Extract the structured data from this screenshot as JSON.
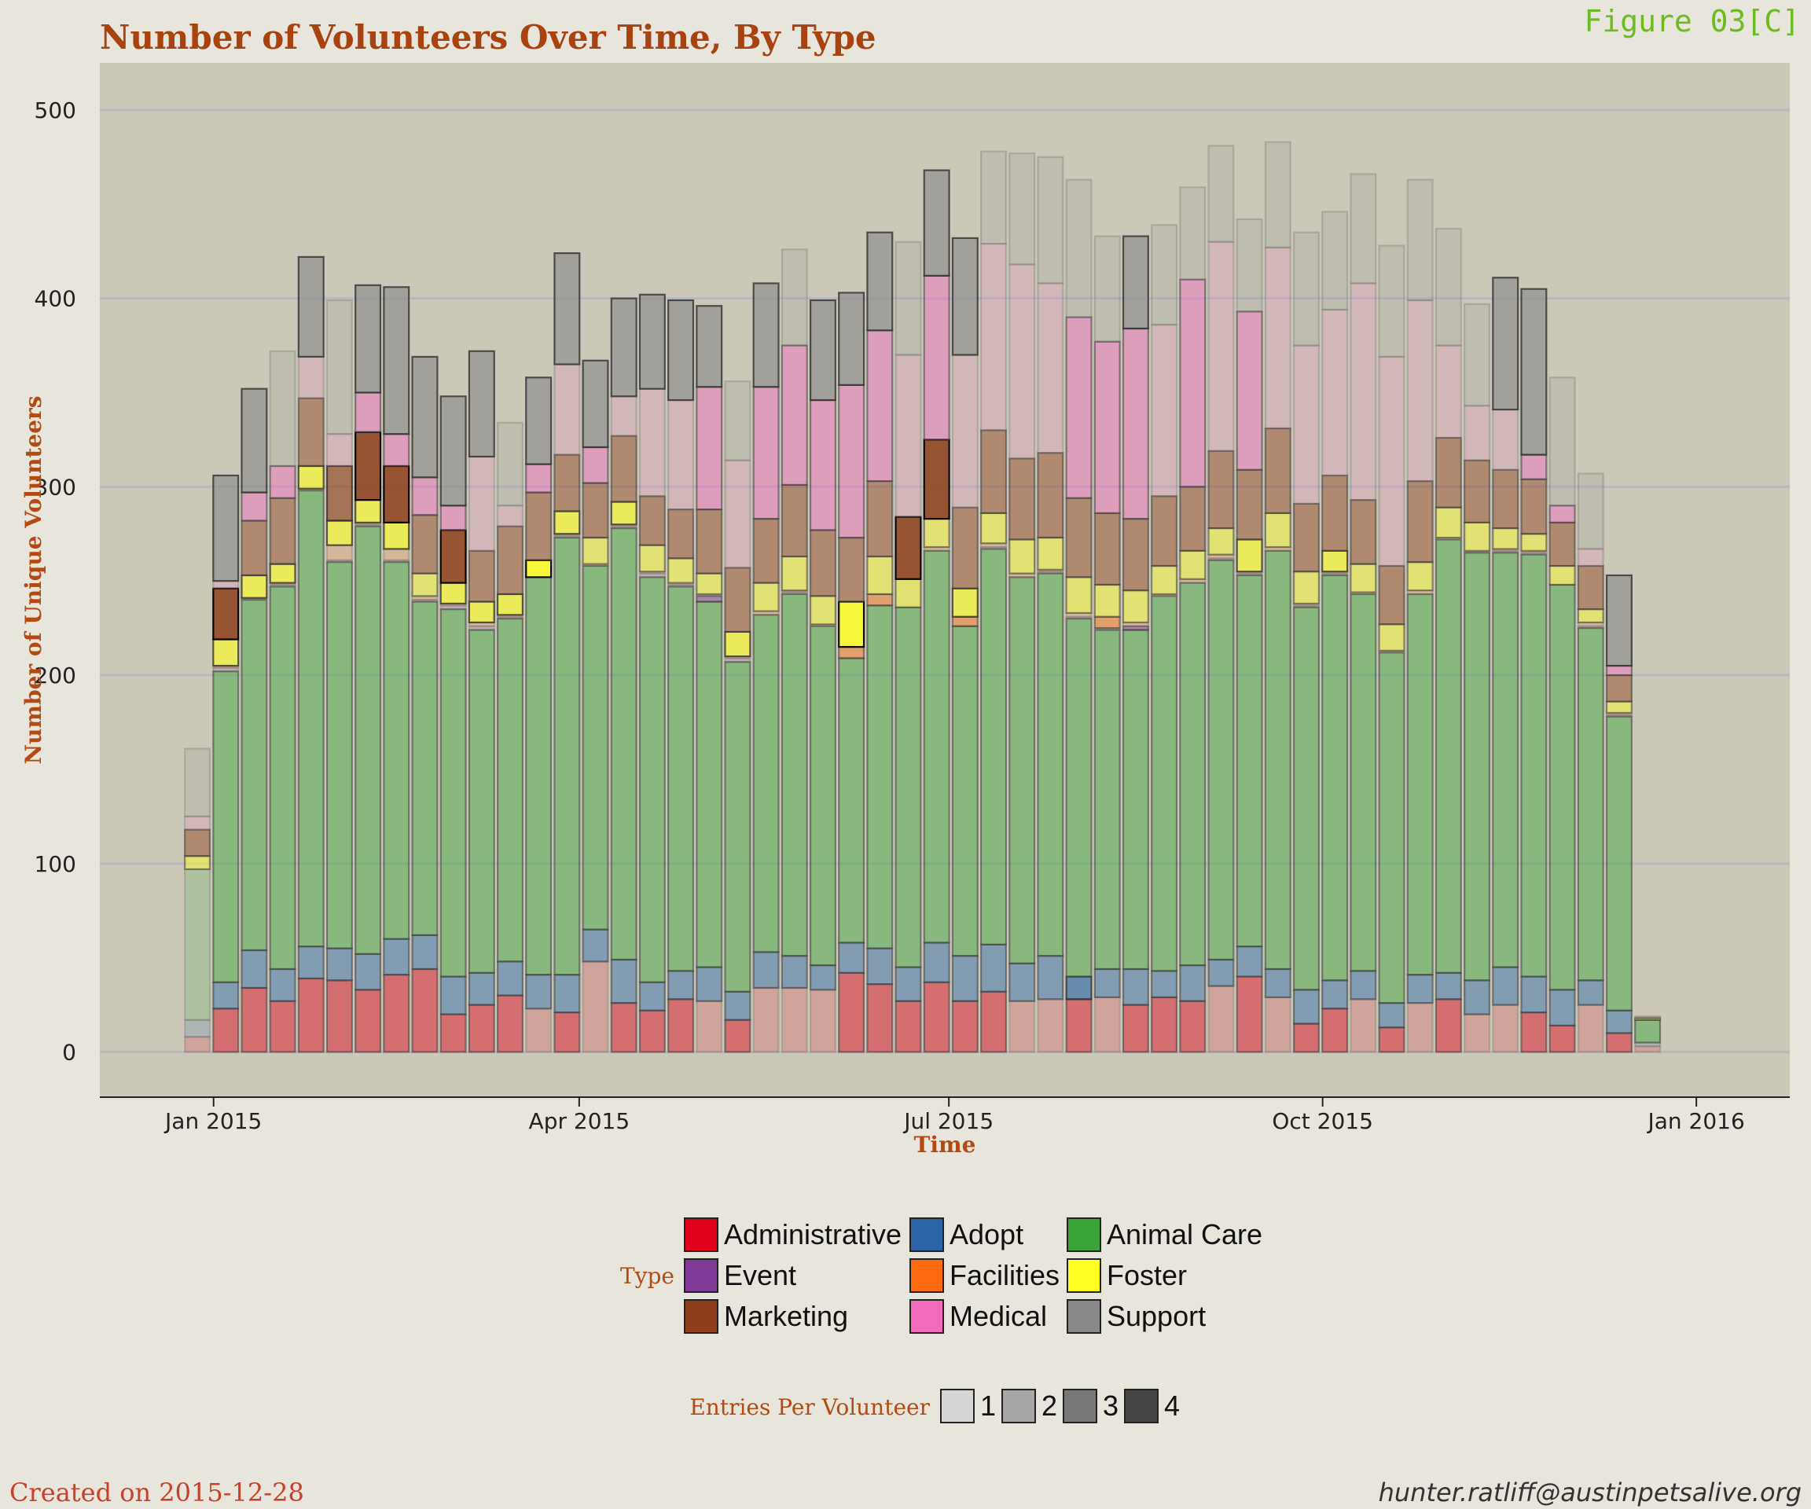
{
  "title": "Number of Volunteers Over Time, By Type",
  "figure_label": "Figure 03[C]",
  "footer": {
    "created": "Created on 2015-12-28",
    "email": "hunter.ratliff@austinpetsalive.org"
  },
  "chart_data": {
    "type": "bar",
    "stacked": true,
    "title": "Number of Volunteers Over Time, By Type",
    "xlabel": "Time",
    "ylabel": "Number of Unique Volunteers",
    "x_ticks": [
      "Jan 2015",
      "Apr 2015",
      "Jul 2015",
      "Oct 2015",
      "Jan 2016"
    ],
    "x_tick_dates": [
      "2015-01-01",
      "2015-04-01",
      "2015-07-01",
      "2015-10-01",
      "2016-01-01"
    ],
    "x_range": [
      "2014-12-04",
      "2016-01-24"
    ],
    "y_ticks": [
      0,
      100,
      200,
      300,
      400,
      500
    ],
    "ylim": [
      -24,
      525
    ],
    "grid": true,
    "legend_type": {
      "title": "Type",
      "placement": "bottom",
      "entries": [
        {
          "name": "Administrative",
          "color": "#e0001b"
        },
        {
          "name": "Adopt",
          "color": "#2b65a8"
        },
        {
          "name": "Animal Care",
          "color": "#3aa33a"
        },
        {
          "name": "Event",
          "color": "#7f3a98"
        },
        {
          "name": "Facilities",
          "color": "#ff6a10"
        },
        {
          "name": "Foster",
          "color": "#ffff22"
        },
        {
          "name": "Marketing",
          "color": "#8e3f1a"
        },
        {
          "name": "Medical",
          "color": "#f26bbd"
        },
        {
          "name": "Support",
          "color": "#888888"
        }
      ]
    },
    "legend_entries": {
      "title": "Entries Per Volunteer",
      "placement": "bottom",
      "entries": [
        {
          "name": "1",
          "color": "#d6d6d6"
        },
        {
          "name": "2",
          "color": "#a6a6a6"
        },
        {
          "name": "3",
          "color": "#777777"
        },
        {
          "name": "4",
          "color": "#444444"
        }
      ]
    },
    "stack_order": [
      "Administrative",
      "Adopt",
      "Animal Care",
      "Event",
      "Facilities",
      "Foster",
      "Marketing",
      "Medical",
      "Support"
    ],
    "week_start": [
      "2014-12-28",
      "2015-01-04",
      "2015-01-11",
      "2015-01-18",
      "2015-01-25",
      "2015-02-01",
      "2015-02-08",
      "2015-02-15",
      "2015-02-22",
      "2015-03-01",
      "2015-03-08",
      "2015-03-15",
      "2015-03-22",
      "2015-03-29",
      "2015-04-05",
      "2015-04-12",
      "2015-04-19",
      "2015-04-26",
      "2015-05-03",
      "2015-05-10",
      "2015-05-17",
      "2015-05-24",
      "2015-05-31",
      "2015-06-07",
      "2015-06-14",
      "2015-06-21",
      "2015-06-28",
      "2015-07-05",
      "2015-07-12",
      "2015-07-19",
      "2015-07-26",
      "2015-08-02",
      "2015-08-09",
      "2015-08-16",
      "2015-08-23",
      "2015-08-30",
      "2015-09-06",
      "2015-09-13",
      "2015-09-20",
      "2015-09-27",
      "2015-10-04",
      "2015-10-11",
      "2015-10-18",
      "2015-10-25",
      "2015-11-01",
      "2015-11-08",
      "2015-11-15",
      "2015-11-22",
      "2015-11-29",
      "2015-12-06",
      "2015-12-13",
      "2015-12-20",
      "2015-12-27"
    ],
    "series": [
      {
        "name": "Administrative",
        "values": [
          8,
          23,
          34,
          27,
          39,
          38,
          33,
          41,
          44,
          20,
          25,
          30,
          23,
          21,
          48,
          26,
          22,
          28,
          27,
          17,
          34,
          34,
          33,
          42,
          36,
          27,
          37,
          27,
          32,
          27,
          28,
          28,
          29,
          25,
          29,
          27,
          35,
          40,
          29,
          15,
          23,
          28,
          13,
          26,
          28,
          20,
          25,
          21,
          14,
          25,
          10,
          3,
          0
        ],
        "entries": [
          1,
          2,
          2,
          2,
          2,
          2,
          2,
          2,
          2,
          2,
          2,
          2,
          1,
          2,
          1,
          2,
          2,
          2,
          1,
          2,
          1,
          1,
          1,
          2,
          2,
          2,
          2,
          2,
          2,
          1,
          1,
          2,
          1,
          2,
          2,
          2,
          1,
          2,
          1,
          2,
          2,
          1,
          2,
          1,
          2,
          1,
          1,
          2,
          2,
          1,
          2,
          1,
          1
        ]
      },
      {
        "name": "Adopt",
        "values": [
          9,
          14,
          20,
          17,
          17,
          17,
          19,
          19,
          18,
          20,
          17,
          18,
          18,
          20,
          17,
          23,
          15,
          15,
          18,
          15,
          19,
          17,
          13,
          16,
          19,
          18,
          21,
          24,
          25,
          20,
          23,
          12,
          15,
          19,
          14,
          19,
          14,
          16,
          15,
          18,
          15,
          15,
          13,
          15,
          14,
          18,
          20,
          19,
          19,
          13,
          12,
          2,
          0
        ],
        "entries": [
          1,
          2,
          2,
          2,
          2,
          2,
          2,
          2,
          2,
          2,
          2,
          2,
          2,
          2,
          2,
          2,
          2,
          2,
          2,
          2,
          2,
          2,
          2,
          2,
          2,
          2,
          2,
          2,
          2,
          2,
          2,
          3,
          2,
          2,
          2,
          2,
          2,
          2,
          2,
          2,
          2,
          2,
          2,
          2,
          2,
          2,
          2,
          2,
          2,
          2,
          2,
          1,
          1
        ]
      },
      {
        "name": "Animal Care",
        "values": [
          80,
          165,
          186,
          203,
          242,
          205,
          227,
          200,
          177,
          195,
          182,
          182,
          211,
          232,
          193,
          229,
          215,
          204,
          194,
          175,
          179,
          192,
          180,
          151,
          182,
          191,
          208,
          175,
          210,
          205,
          203,
          190,
          180,
          180,
          199,
          203,
          212,
          197,
          222,
          203,
          215,
          200,
          186,
          202,
          230,
          227,
          220,
          224,
          215,
          187,
          156,
          12,
          0
        ],
        "entries": [
          1,
          2,
          2,
          2,
          2,
          2,
          2,
          2,
          2,
          2,
          2,
          2,
          2,
          2,
          2,
          2,
          2,
          2,
          2,
          2,
          2,
          2,
          2,
          2,
          2,
          2,
          2,
          2,
          2,
          2,
          2,
          2,
          2,
          2,
          2,
          2,
          2,
          2,
          2,
          2,
          2,
          2,
          2,
          2,
          2,
          2,
          2,
          2,
          2,
          2,
          2,
          2,
          2
        ]
      },
      {
        "name": "Event",
        "values": [
          0,
          2,
          1,
          1,
          0,
          1,
          1,
          1,
          1,
          2,
          2,
          1,
          0,
          1,
          0,
          1,
          2,
          1,
          3,
          2,
          0,
          1,
          0,
          0,
          0,
          0,
          0,
          0,
          1,
          0,
          1,
          1,
          1,
          2,
          0,
          0,
          1,
          1,
          0,
          1,
          1,
          0,
          0,
          0,
          0,
          1,
          1,
          1,
          0,
          1,
          1,
          0,
          0
        ],
        "entries": [
          1,
          1,
          1,
          1,
          1,
          1,
          1,
          1,
          1,
          1,
          1,
          1,
          1,
          1,
          1,
          1,
          1,
          1,
          2,
          1,
          1,
          1,
          1,
          1,
          1,
          1,
          1,
          1,
          1,
          1,
          1,
          1,
          1,
          2,
          1,
          1,
          1,
          1,
          1,
          1,
          1,
          1,
          1,
          1,
          1,
          1,
          1,
          1,
          1,
          1,
          1,
          1,
          1
        ]
      },
      {
        "name": "Facilities",
        "values": [
          0,
          1,
          0,
          1,
          1,
          8,
          1,
          6,
          2,
          1,
          2,
          1,
          0,
          1,
          1,
          1,
          1,
          1,
          1,
          1,
          2,
          1,
          1,
          6,
          6,
          0,
          2,
          5,
          2,
          2,
          1,
          2,
          6,
          2,
          1,
          2,
          2,
          1,
          2,
          1,
          1,
          1,
          1,
          2,
          1,
          0,
          1,
          1,
          0,
          2,
          1,
          0,
          0
        ],
        "entries": [
          1,
          1,
          1,
          1,
          1,
          1,
          1,
          1,
          1,
          1,
          1,
          1,
          1,
          1,
          1,
          1,
          1,
          1,
          1,
          1,
          1,
          1,
          1,
          2,
          2,
          1,
          1,
          2,
          1,
          1,
          1,
          1,
          2,
          1,
          1,
          1,
          1,
          1,
          1,
          1,
          1,
          1,
          1,
          1,
          1,
          1,
          1,
          1,
          1,
          1,
          1,
          1,
          1
        ]
      },
      {
        "name": "Foster",
        "values": [
          7,
          14,
          12,
          10,
          12,
          13,
          12,
          14,
          12,
          11,
          11,
          11,
          9,
          12,
          14,
          12,
          14,
          13,
          11,
          13,
          15,
          18,
          15,
          24,
          20,
          15,
          15,
          15,
          16,
          18,
          17,
          19,
          17,
          17,
          15,
          15,
          14,
          17,
          18,
          17,
          11,
          15,
          14,
          15,
          16,
          15,
          11,
          9,
          10,
          7,
          6,
          1,
          0
        ],
        "entries": [
          2,
          3,
          3,
          3,
          3,
          3,
          3,
          3,
          2,
          3,
          3,
          3,
          4,
          3,
          2,
          3,
          2,
          2,
          2,
          3,
          2,
          2,
          2,
          4,
          2,
          2,
          2,
          3,
          2,
          2,
          2,
          2,
          2,
          2,
          2,
          2,
          2,
          3,
          2,
          2,
          3,
          2,
          2,
          2,
          2,
          2,
          2,
          2,
          2,
          2,
          2,
          2,
          2
        ]
      },
      {
        "name": "Marketing",
        "values": [
          14,
          27,
          29,
          35,
          36,
          29,
          36,
          30,
          31,
          28,
          27,
          36,
          36,
          30,
          29,
          35,
          26,
          26,
          34,
          34,
          34,
          38,
          35,
          34,
          40,
          33,
          42,
          43,
          44,
          43,
          45,
          42,
          38,
          38,
          37,
          34,
          41,
          37,
          45,
          36,
          40,
          34,
          31,
          43,
          37,
          33,
          31,
          29,
          23,
          23,
          14,
          1,
          0
        ],
        "entries": [
          2,
          4,
          2,
          2,
          2,
          3,
          4,
          4,
          2,
          4,
          2,
          2,
          2,
          2,
          2,
          2,
          2,
          2,
          2,
          2,
          2,
          2,
          2,
          2,
          2,
          4,
          4,
          2,
          2,
          2,
          2,
          2,
          2,
          2,
          2,
          2,
          2,
          2,
          2,
          2,
          2,
          2,
          2,
          2,
          2,
          2,
          2,
          2,
          2,
          2,
          2,
          1,
          1
        ]
      },
      {
        "name": "Medical",
        "values": [
          7,
          4,
          15,
          17,
          22,
          17,
          21,
          17,
          20,
          13,
          50,
          11,
          15,
          48,
          19,
          21,
          57,
          58,
          65,
          57,
          70,
          74,
          69,
          81,
          80,
          86,
          87,
          81,
          99,
          103,
          90,
          96,
          91,
          101,
          91,
          110,
          111,
          84,
          96,
          84,
          88,
          115,
          111,
          96,
          49,
          29,
          32,
          13,
          9,
          9,
          5,
          0,
          0
        ],
        "entries": [
          1,
          1,
          2,
          2,
          1,
          1,
          2,
          2,
          2,
          2,
          1,
          1,
          2,
          1,
          2,
          1,
          1,
          1,
          2,
          1,
          2,
          2,
          2,
          2,
          2,
          1,
          2,
          1,
          1,
          1,
          1,
          2,
          2,
          2,
          1,
          2,
          1,
          2,
          1,
          1,
          1,
          1,
          1,
          1,
          1,
          1,
          1,
          2,
          2,
          1,
          2,
          1,
          1
        ]
      },
      {
        "name": "Support",
        "values": [
          36,
          56,
          55,
          61,
          53,
          71,
          57,
          78,
          64,
          58,
          56,
          44,
          46,
          59,
          46,
          52,
          50,
          53,
          43,
          42,
          55,
          51,
          53,
          49,
          52,
          60,
          56,
          62,
          49,
          59,
          67,
          73,
          56,
          49,
          53,
          49,
          51,
          49,
          56,
          60,
          52,
          58,
          59,
          64,
          62,
          54,
          70,
          88,
          68,
          40,
          48,
          0,
          0
        ],
        "entries": [
          1,
          3,
          3,
          1,
          3,
          1,
          3,
          3,
          3,
          3,
          3,
          1,
          3,
          3,
          3,
          3,
          3,
          3,
          3,
          1,
          3,
          1,
          3,
          3,
          3,
          1,
          3,
          3,
          1,
          1,
          1,
          1,
          1,
          3,
          1,
          1,
          1,
          1,
          1,
          1,
          1,
          1,
          1,
          1,
          1,
          1,
          3,
          3,
          1,
          1,
          3,
          1,
          1
        ]
      }
    ]
  }
}
